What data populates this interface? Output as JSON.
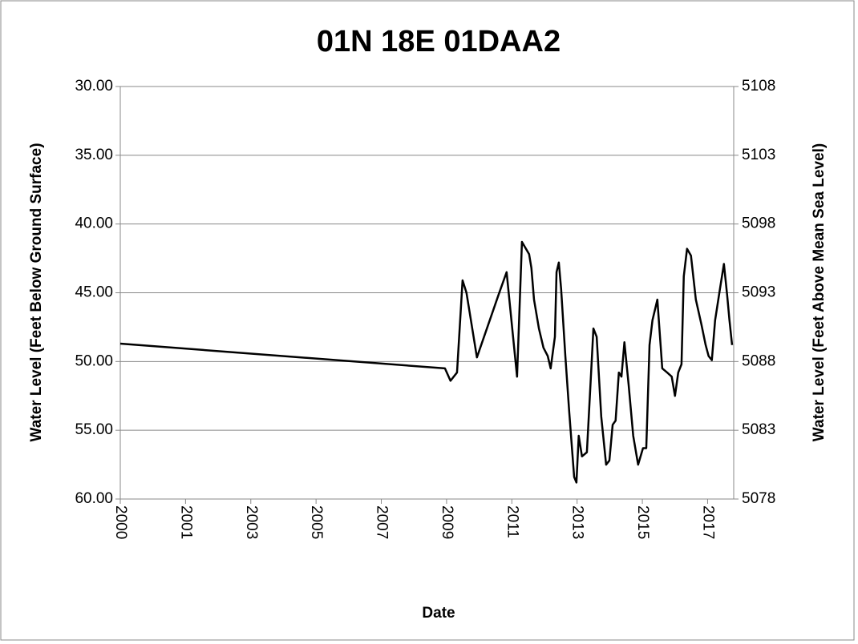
{
  "chart_data": {
    "type": "line",
    "title": "01N 18E 01DAA2",
    "x_label": "Date",
    "y_label": "Water Level (Feet Below Ground Surface)",
    "y2_label": "Water Level (Feet Above Mean Sea Level)",
    "xlim": [
      2000,
      2018.8
    ],
    "xticks": [
      {
        "value": 2000,
        "label": "2000"
      },
      {
        "value": 2002,
        "label": "2001"
      },
      {
        "value": 2004,
        "label": "2003"
      },
      {
        "value": 2006,
        "label": "2005"
      },
      {
        "value": 2008,
        "label": "2007"
      },
      {
        "value": 2010,
        "label": "2009"
      },
      {
        "value": 2012,
        "label": "2011"
      },
      {
        "value": 2014,
        "label": "2013"
      },
      {
        "value": 2016,
        "label": "2015"
      },
      {
        "value": 2018,
        "label": "2017"
      }
    ],
    "ylim": [
      30,
      60
    ],
    "y_inverted": true,
    "yticks": [
      {
        "value": 30,
        "label": "30.00"
      },
      {
        "value": 35,
        "label": "35.00"
      },
      {
        "value": 40,
        "label": "40.00"
      },
      {
        "value": 45,
        "label": "45.00"
      },
      {
        "value": 50,
        "label": "50.00"
      },
      {
        "value": 55,
        "label": "55.00"
      },
      {
        "value": 60,
        "label": "60.00"
      }
    ],
    "y2lim": [
      5108,
      5078
    ],
    "y2ticks": [
      5108,
      5103,
      5098,
      5093,
      5088,
      5083,
      5078
    ],
    "grid": true,
    "x": [
      2000,
      2009.95,
      2010.12,
      2010.32,
      2010.49,
      2010.61,
      2010.93,
      2011.6,
      2011.84,
      2012.16,
      2012.31,
      2012.53,
      2012.6,
      2012.68,
      2012.83,
      2012.97,
      2013.1,
      2013.19,
      2013.32,
      2013.37,
      2013.44,
      2013.51,
      2013.64,
      2013.76,
      2013.91,
      2013.98,
      2014.05,
      2014.15,
      2014.3,
      2014.45,
      2014.5,
      2014.6,
      2014.74,
      2014.89,
      2014.99,
      2015.09,
      2015.18,
      2015.28,
      2015.36,
      2015.45,
      2015.58,
      2015.72,
      2015.87,
      2016.02,
      2016.12,
      2016.22,
      2016.31,
      2016.46,
      2016.61,
      2016.76,
      2016.9,
      2017.0,
      2017.1,
      2017.2,
      2017.27,
      2017.37,
      2017.49,
      2017.64,
      2017.81,
      2017.94,
      2018.03,
      2018.13,
      2018.23,
      2018.38,
      2018.5,
      2018.6,
      2018.67,
      2018.75
    ],
    "series": [
      {
        "color": "#000000",
        "values": [
          48.7,
          50.5,
          51.4,
          50.8,
          44.1,
          45.0,
          49.7,
          45.1,
          43.5,
          51.1,
          41.3,
          42.2,
          43.2,
          45.5,
          47.6,
          49.0,
          49.6,
          50.5,
          48.2,
          43.5,
          42.8,
          44.7,
          49.6,
          53.7,
          58.4,
          58.8,
          55.4,
          56.9,
          56.6,
          49.9,
          47.6,
          48.2,
          54.0,
          57.5,
          57.2,
          54.6,
          54.3,
          50.8,
          51.1,
          48.6,
          51.7,
          55.4,
          57.5,
          56.3,
          56.3,
          48.8,
          47.0,
          45.5,
          50.5,
          50.8,
          51.1,
          52.5,
          50.8,
          50.2,
          43.8,
          41.8,
          42.3,
          45.5,
          47.3,
          48.8,
          49.6,
          49.9,
          47.0,
          44.7,
          42.9,
          45.2,
          47.0,
          48.8
        ]
      }
    ]
  }
}
